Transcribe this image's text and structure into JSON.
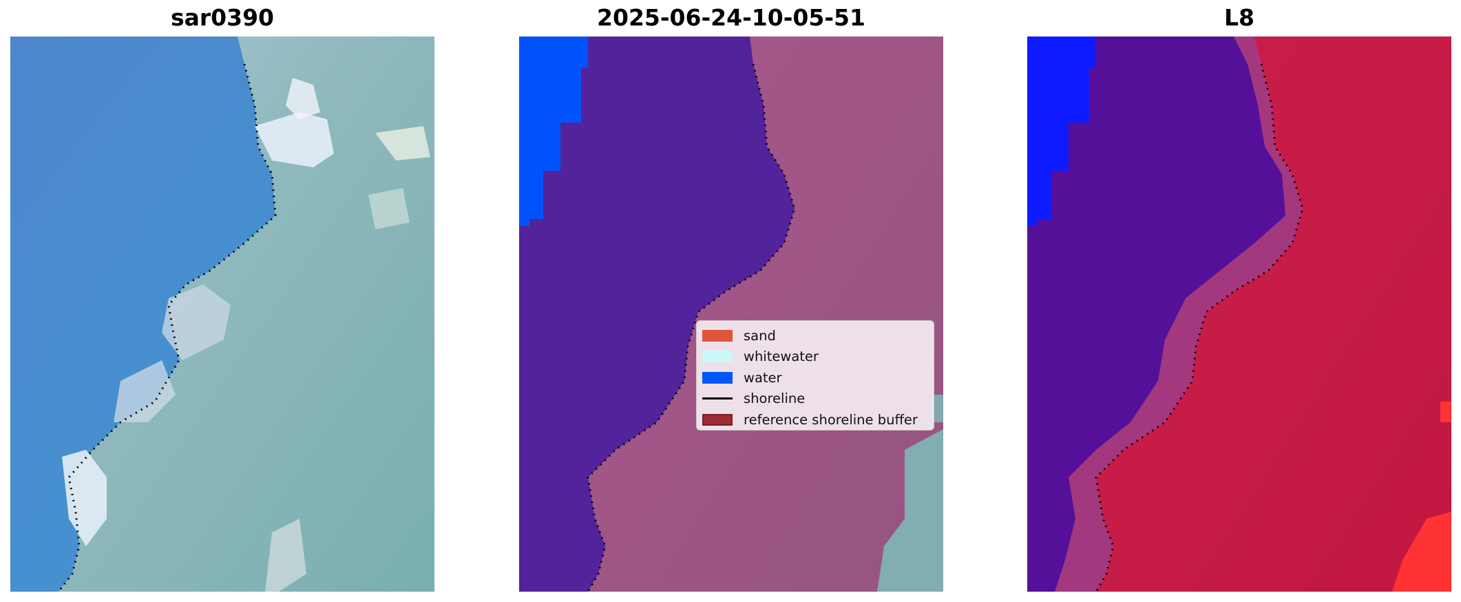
{
  "panels": [
    {
      "title": "sar0390",
      "content": "rgb-image"
    },
    {
      "title": "2025-06-24-10-05-51",
      "content": "classified-image"
    },
    {
      "title": "L8",
      "content": "water-index-image"
    }
  ],
  "legend": {
    "items": [
      {
        "label": "sand",
        "kind": "patch",
        "color": "#e0553a"
      },
      {
        "label": "whitewater",
        "kind": "patch",
        "color": "#ccf7f9"
      },
      {
        "label": "water",
        "kind": "patch",
        "color": "#0057fa"
      },
      {
        "label": "shoreline",
        "kind": "line",
        "color": "#000000"
      },
      {
        "label": "reference shoreline buffer",
        "kind": "patch",
        "color": "#9e2c34",
        "border": "#7a1e26"
      }
    ]
  },
  "colors": {
    "ocean_rgb": "#4a8fce",
    "land_rgb": "#7fb1b3",
    "foam_rgb": "#e5eef5",
    "classified_water": "#52239a",
    "classified_land": "#a05788",
    "water_blue": "#0053fb",
    "index_water": "#55109a",
    "index_land": "#c11a45",
    "index_high": "#ff3333",
    "shoreline": "#000000"
  }
}
